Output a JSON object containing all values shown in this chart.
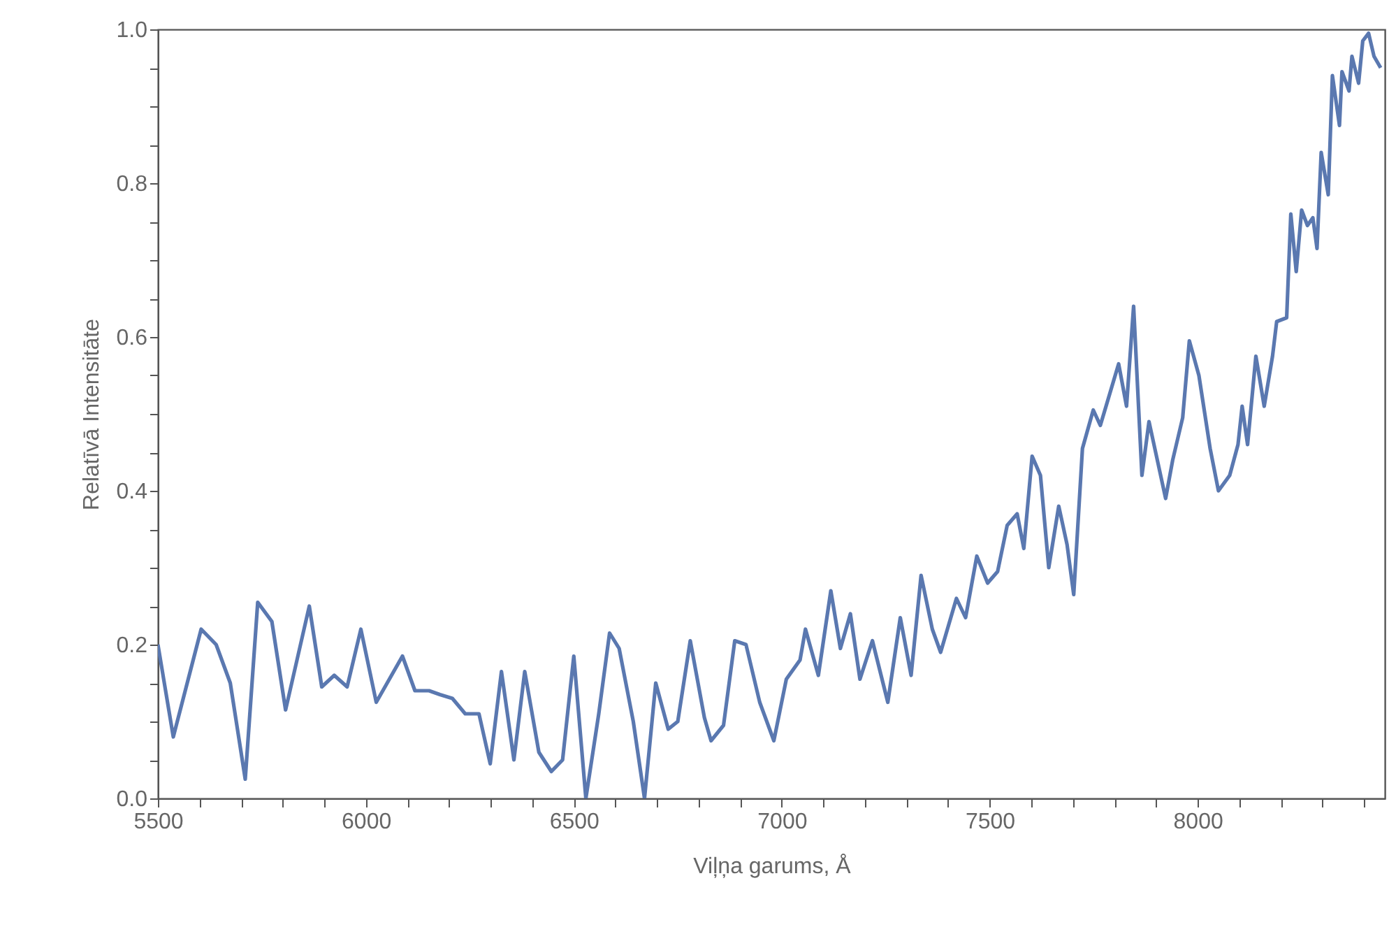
{
  "chart_data": {
    "type": "line",
    "xlabel": "Viļņa garums, Å",
    "ylabel": "Relatīvā Intensitāte",
    "xlim": [
      5500,
      8450
    ],
    "ylim": [
      0,
      1
    ],
    "xticks": [
      5500,
      {
        "value": 5600,
        "label": null
      },
      {
        "value": 5700,
        "label": null
      },
      {
        "value": 5800,
        "label": null
      },
      {
        "value": 5900,
        "label": null
      },
      6000,
      {
        "value": 6100,
        "label": null
      },
      {
        "value": 6200,
        "label": null
      },
      {
        "value": 6300,
        "label": null
      },
      {
        "value": 6400,
        "label": null
      },
      6500,
      {
        "value": 6600,
        "label": null
      },
      {
        "value": 6700,
        "label": null
      },
      {
        "value": 6800,
        "label": null
      },
      {
        "value": 6900,
        "label": null
      },
      7000,
      {
        "value": 7100,
        "label": null
      },
      {
        "value": 7200,
        "label": null
      },
      {
        "value": 7300,
        "label": null
      },
      {
        "value": 7400,
        "label": null
      },
      7500,
      {
        "value": 7600,
        "label": null
      },
      {
        "value": 7700,
        "label": null
      },
      {
        "value": 7800,
        "label": null
      },
      {
        "value": 7900,
        "label": null
      },
      8000,
      {
        "value": 8100,
        "label": null
      },
      {
        "value": 8200,
        "label": null
      },
      {
        "value": 8300,
        "label": null
      },
      {
        "value": 8400,
        "label": null
      }
    ],
    "yticks": [
      {
        "value": 0,
        "label": "0.0"
      },
      {
        "value": 0.05,
        "label": null
      },
      {
        "value": 0.1,
        "label": null
      },
      {
        "value": 0.15,
        "label": null
      },
      0.2,
      {
        "value": 0.25,
        "label": null
      },
      {
        "value": 0.3,
        "label": null
      },
      {
        "value": 0.35,
        "label": null
      },
      0.4,
      {
        "value": 0.45,
        "label": null
      },
      {
        "value": 0.5,
        "label": null
      },
      {
        "value": 0.55,
        "label": null
      },
      0.6,
      {
        "value": 0.65,
        "label": null
      },
      {
        "value": 0.7,
        "label": null
      },
      {
        "value": 0.75,
        "label": null
      },
      0.8,
      {
        "value": 0.85,
        "label": null
      },
      {
        "value": 0.9,
        "label": null
      },
      {
        "value": 0.95,
        "label": null
      },
      {
        "value": 1,
        "label": "1.0"
      }
    ],
    "grid": false,
    "marker": "none",
    "line_style": "solid",
    "series": [
      {
        "color": "#5a78b0",
        "x": [
          5500,
          5537,
          5604,
          5640,
          5674,
          5710,
          5740,
          5774,
          5807,
          5864,
          5894,
          5924,
          5955,
          5988,
          6025,
          6088,
          6118,
          6152,
          6178,
          6208,
          6239,
          6272,
          6299,
          6326,
          6356,
          6382,
          6416,
          6446,
          6473,
          6500,
          6529,
          6560,
          6586,
          6609,
          6643,
          6670,
          6697,
          6727,
          6750,
          6780,
          6814,
          6830,
          6860,
          6887,
          6914,
          6947,
          6981,
          7011,
          7044,
          7057,
          7088,
          7118,
          7141,
          7165,
          7188,
          7218,
          7255,
          7285,
          7311,
          7335,
          7362,
          7382,
          7420,
          7442,
          7469,
          7495,
          7519,
          7542,
          7566,
          7582,
          7602,
          7622,
          7642,
          7666,
          7686,
          7702,
          7723,
          7749,
          7766,
          7810,
          7829,
          7846,
          7866,
          7883,
          7923,
          7940,
          7964,
          7980,
          8003,
          8030,
          8050,
          8077,
          8097,
          8107,
          8120,
          8140,
          8160,
          8180,
          8190,
          8214,
          8224,
          8237,
          8250,
          8264,
          8277,
          8287,
          8297,
          8314,
          8324,
          8341,
          8347,
          8364,
          8371,
          8387,
          8397,
          8411,
          8424,
          8440
        ],
        "values": [
          0.2,
          0.08,
          0.22,
          0.2,
          0.15,
          0.025,
          0.255,
          0.23,
          0.115,
          0.25,
          0.145,
          0.16,
          0.145,
          0.22,
          0.125,
          0.185,
          0.14,
          0.14,
          0.135,
          0.13,
          0.11,
          0.11,
          0.045,
          0.165,
          0.05,
          0.165,
          0.06,
          0.035,
          0.05,
          0.185,
          0.0,
          0.11,
          0.215,
          0.195,
          0.1,
          0.0,
          0.15,
          0.09,
          0.1,
          0.205,
          0.105,
          0.075,
          0.095,
          0.205,
          0.2,
          0.125,
          0.075,
          0.155,
          0.18,
          0.22,
          0.16,
          0.27,
          0.195,
          0.24,
          0.155,
          0.205,
          0.125,
          0.235,
          0.16,
          0.29,
          0.22,
          0.19,
          0.26,
          0.235,
          0.315,
          0.28,
          0.295,
          0.355,
          0.37,
          0.325,
          0.445,
          0.42,
          0.3,
          0.38,
          0.33,
          0.265,
          0.455,
          0.505,
          0.485,
          0.565,
          0.51,
          0.64,
          0.42,
          0.49,
          0.39,
          0.44,
          0.495,
          0.595,
          0.55,
          0.455,
          0.4,
          0.42,
          0.46,
          0.51,
          0.46,
          0.575,
          0.51,
          0.575,
          0.62,
          0.625,
          0.76,
          0.685,
          0.765,
          0.745,
          0.755,
          0.715,
          0.84,
          0.785,
          0.94,
          0.875,
          0.945,
          0.92,
          0.965,
          0.93,
          0.985,
          0.995,
          0.965,
          0.95
        ]
      }
    ]
  }
}
